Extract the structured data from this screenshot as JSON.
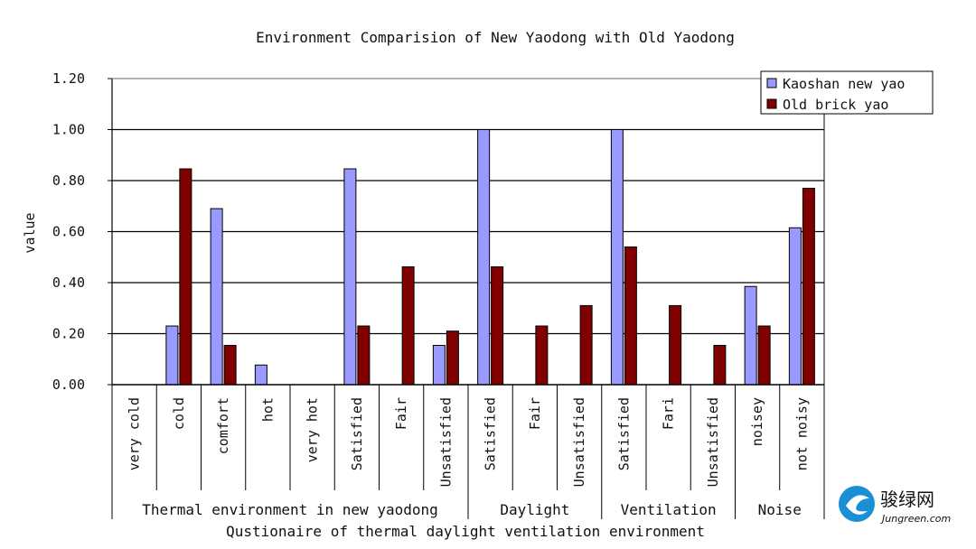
{
  "chart_data": {
    "type": "bar",
    "title": "Environment Comparision of New Yaodong with Old Yaodong",
    "ylabel": "value",
    "xlabel": "Qustionaire of thermal  daylight ventilation environment",
    "ylim": [
      0,
      1.2
    ],
    "yticks": [
      "0.00",
      "0.20",
      "0.40",
      "0.60",
      "0.80",
      "1.00",
      "1.20"
    ],
    "categories": [
      "very cold",
      "cold",
      "comfort",
      "hot",
      "very hot",
      "Satisfied",
      "Fair",
      "Unsatisfied",
      "Satisfied",
      "Fair",
      "Unsatisfied",
      "Satisfied",
      "Fari",
      "Unsatisfied",
      "noisey",
      "not noisy"
    ],
    "groups": [
      {
        "label": "Thermal environment in new yaodong",
        "count": 8
      },
      {
        "label": "Daylight",
        "count": 3
      },
      {
        "label": "Ventilation",
        "count": 3
      },
      {
        "label": "Noise",
        "count": 2
      }
    ],
    "series": [
      {
        "name": "Kaoshan new yao",
        "color": "#9999ff",
        "values": [
          0,
          0.23,
          0.69,
          0.077,
          0,
          0.846,
          0,
          0.154,
          1.0,
          0,
          0,
          1.0,
          0,
          0,
          0.385,
          0.615
        ]
      },
      {
        "name": "Old brick yao",
        "color": "#800000",
        "values": [
          0,
          0.846,
          0.154,
          0,
          0,
          0.23,
          0.462,
          0.21,
          0.462,
          0.23,
          0.31,
          0.54,
          0.31,
          0.154,
          0.23,
          0.77
        ]
      }
    ],
    "grid": true,
    "legend_position": "top-right"
  },
  "watermark": {
    "name": "骏绿网",
    "url": "Jungreen.com",
    "color": "#1a8fd6"
  }
}
